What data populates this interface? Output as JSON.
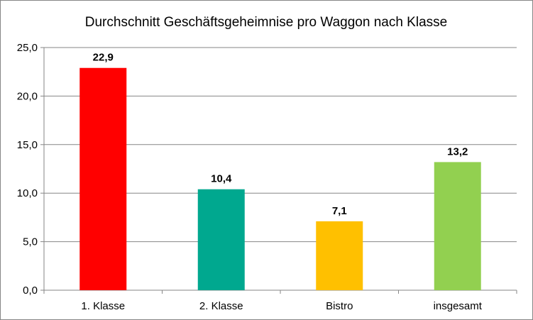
{
  "chart_data": {
    "type": "bar",
    "title": "Durchschnitt Geschäftsgeheimnise pro Waggon nach Klasse",
    "xlabel": "",
    "ylabel": "",
    "categories": [
      "1. Klasse",
      "2. Klasse",
      "Bistro",
      "insgesamt"
    ],
    "values": [
      22.9,
      10.4,
      7.1,
      13.2
    ],
    "value_labels": [
      "22,9",
      "10,4",
      "7,1",
      "13,2"
    ],
    "colors": [
      "#ff0000",
      "#00a88f",
      "#ffc000",
      "#92d050"
    ],
    "ylim": [
      0,
      25
    ],
    "yticks": [
      0,
      5,
      10,
      15,
      20,
      25
    ],
    "ytick_labels": [
      "0,0",
      "5,0",
      "10,0",
      "15,0",
      "20,0",
      "25,0"
    ],
    "grid": true,
    "legend": "none"
  }
}
